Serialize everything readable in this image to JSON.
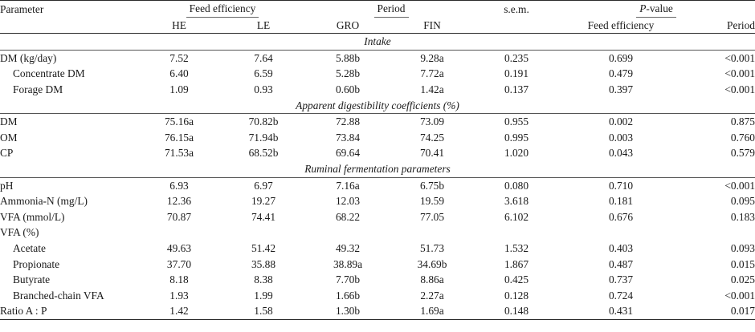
{
  "header": {
    "parameter": "Parameter",
    "feed_efficiency": "Feed efficiency",
    "period": "Period",
    "sem": "s.e.m.",
    "pvalue_italic": "P",
    "pvalue_rest": "-value",
    "he": "HE",
    "le": "LE",
    "gro": "GRO",
    "fin": "FIN",
    "p_feed": "Feed efficiency",
    "p_period": "Period"
  },
  "sections": [
    {
      "title": "Intake",
      "rows": [
        {
          "label": "DM (kg/day)",
          "indent": false,
          "he": "7.52",
          "le": "7.64",
          "gro": "5.88b",
          "fin": "9.28a",
          "sem": "0.235",
          "p_fe": "0.699",
          "p_per": "<0.001"
        },
        {
          "label": "Concentrate DM",
          "indent": true,
          "he": "6.40",
          "le": "6.59",
          "gro": "5.28b",
          "fin": "7.72a",
          "sem": "0.191",
          "p_fe": "0.479",
          "p_per": "<0.001"
        },
        {
          "label": "Forage DM",
          "indent": true,
          "he": "1.09",
          "le": "0.93",
          "gro": "0.60b",
          "fin": "1.42a",
          "sem": "0.137",
          "p_fe": "0.397",
          "p_per": "<0.001"
        }
      ]
    },
    {
      "title": "Apparent digestibility coefficients (%)",
      "rows": [
        {
          "label": "DM",
          "indent": false,
          "he": "75.16a",
          "le": "70.82b",
          "gro": "72.88",
          "fin": "73.09",
          "sem": "0.955",
          "p_fe": "0.002",
          "p_per": "0.875"
        },
        {
          "label": "OM",
          "indent": false,
          "he": "76.15a",
          "le": "71.94b",
          "gro": "73.84",
          "fin": "74.25",
          "sem": "0.995",
          "p_fe": "0.003",
          "p_per": "0.760"
        },
        {
          "label": "CP",
          "indent": false,
          "he": "71.53a",
          "le": "68.52b",
          "gro": "69.64",
          "fin": "70.41",
          "sem": "1.020",
          "p_fe": "0.043",
          "p_per": "0.579"
        }
      ]
    },
    {
      "title": "Ruminal fermentation parameters",
      "rows": [
        {
          "label": "pH",
          "indent": false,
          "he": "6.93",
          "le": "6.97",
          "gro": "7.16a",
          "fin": "6.75b",
          "sem": "0.080",
          "p_fe": "0.710",
          "p_per": "<0.001"
        },
        {
          "label": "Ammonia-N (mg/L)",
          "indent": false,
          "he": "12.36",
          "le": "19.27",
          "gro": "12.03",
          "fin": "19.59",
          "sem": "3.618",
          "p_fe": "0.181",
          "p_per": "0.095"
        },
        {
          "label": "VFA (mmol/L)",
          "indent": false,
          "he": "70.87",
          "le": "74.41",
          "gro": "68.22",
          "fin": "77.05",
          "sem": "6.102",
          "p_fe": "0.676",
          "p_per": "0.183"
        },
        {
          "label": "VFA (%)",
          "indent": false,
          "he": "",
          "le": "",
          "gro": "",
          "fin": "",
          "sem": "",
          "p_fe": "",
          "p_per": ""
        },
        {
          "label": "Acetate",
          "indent": true,
          "he": "49.63",
          "le": "51.42",
          "gro": "49.32",
          "fin": "51.73",
          "sem": "1.532",
          "p_fe": "0.403",
          "p_per": "0.093"
        },
        {
          "label": "Propionate",
          "indent": true,
          "he": "37.70",
          "le": "35.88",
          "gro": "38.89a",
          "fin": "34.69b",
          "sem": "1.867",
          "p_fe": "0.487",
          "p_per": "0.015"
        },
        {
          "label": "Butyrate",
          "indent": true,
          "he": "8.18",
          "le": "8.38",
          "gro": "7.70b",
          "fin": "8.86a",
          "sem": "0.425",
          "p_fe": "0.737",
          "p_per": "0.025"
        },
        {
          "label": "Branched-chain VFA",
          "indent": true,
          "he": "1.93",
          "le": "1.99",
          "gro": "1.66b",
          "fin": "2.27a",
          "sem": "0.128",
          "p_fe": "0.724",
          "p_per": "<0.001"
        },
        {
          "label": "Ratio A : P",
          "indent": false,
          "he": "1.42",
          "le": "1.58",
          "gro": "1.30b",
          "fin": "1.69a",
          "sem": "0.148",
          "p_fe": "0.431",
          "p_per": "0.017"
        }
      ]
    }
  ]
}
